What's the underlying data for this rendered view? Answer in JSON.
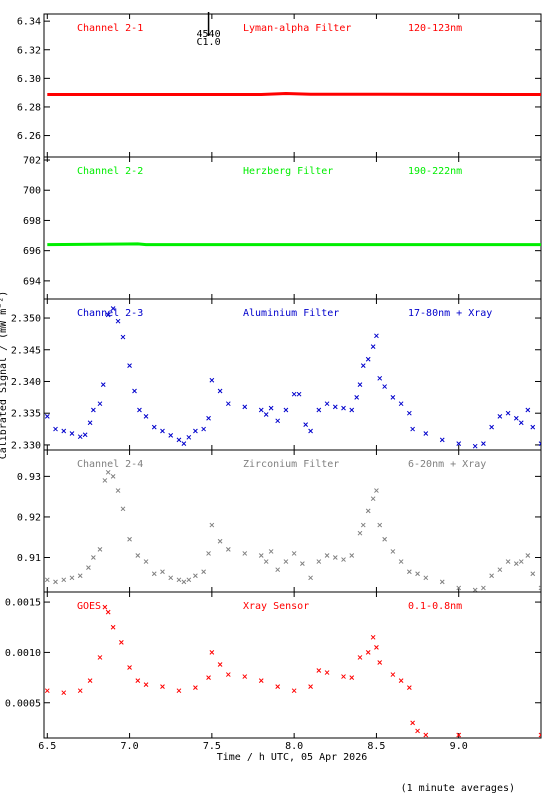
{
  "chart_data": [
    {
      "type": "line",
      "panel_labels": [
        "Channel 2-1",
        "Lyman-alpha Filter",
        "120-123nm"
      ],
      "color": "#ff0000",
      "ylim": [
        6.245,
        6.345
      ],
      "yticks": [
        6.26,
        6.28,
        6.3,
        6.32,
        6.34
      ],
      "ytick_labels": [
        "6.26",
        "6.28",
        "6.30",
        "6.32",
        "6.34"
      ],
      "annotation": {
        "x": 7.48,
        "line1": "4540",
        "line2": "C1.0"
      },
      "series": [
        {
          "points": [
            [
              6.5,
              6.2887
            ],
            [
              7.8,
              6.2887
            ],
            [
              7.95,
              6.2894
            ],
            [
              8.1,
              6.2889
            ],
            [
              9.5,
              6.2887
            ]
          ]
        }
      ]
    },
    {
      "type": "line",
      "panel_labels": [
        "Channel 2-2",
        "Herzberg Filter",
        "190-222nm"
      ],
      "color": "#00ee00",
      "ylim": [
        692.8,
        702.2
      ],
      "yticks": [
        694,
        696,
        698,
        700,
        702
      ],
      "ytick_labels": [
        "694",
        "696",
        "698",
        "700",
        "702"
      ],
      "series": [
        {
          "points": [
            [
              6.5,
              696.4
            ],
            [
              7.05,
              696.45
            ],
            [
              7.1,
              696.4
            ],
            [
              9.5,
              696.4
            ]
          ]
        }
      ]
    },
    {
      "type": "scatter",
      "panel_labels": [
        "Channel 2-3",
        "Aluminium Filter",
        "17-80nm + Xray"
      ],
      "color": "#0000cc",
      "ylim": [
        2.3292,
        2.353
      ],
      "yticks": [
        2.33,
        2.335,
        2.34,
        2.345,
        2.35
      ],
      "ytick_labels": [
        "2.330",
        "2.335",
        "2.340",
        "2.345",
        "2.350"
      ],
      "series": [
        {
          "points": [
            [
              6.5,
              2.3345
            ],
            [
              6.55,
              2.3325
            ],
            [
              6.6,
              2.3322
            ],
            [
              6.65,
              2.3318
            ],
            [
              6.7,
              2.3313
            ],
            [
              6.73,
              2.3316
            ],
            [
              6.76,
              2.3335
            ],
            [
              6.78,
              2.3355
            ],
            [
              6.82,
              2.3365
            ],
            [
              6.84,
              2.3395
            ],
            [
              6.87,
              2.3505
            ],
            [
              6.9,
              2.3515
            ],
            [
              6.93,
              2.3495
            ],
            [
              6.96,
              2.347
            ],
            [
              7.0,
              2.3425
            ],
            [
              7.03,
              2.3385
            ],
            [
              7.06,
              2.3355
            ],
            [
              7.1,
              2.3345
            ],
            [
              7.15,
              2.3328
            ],
            [
              7.2,
              2.3322
            ],
            [
              7.25,
              2.3315
            ],
            [
              7.3,
              2.3308
            ],
            [
              7.33,
              2.3302
            ],
            [
              7.36,
              2.3312
            ],
            [
              7.4,
              2.3322
            ],
            [
              7.45,
              2.3325
            ],
            [
              7.48,
              2.3342
            ],
            [
              7.5,
              2.3402
            ],
            [
              7.55,
              2.3385
            ],
            [
              7.6,
              2.3365
            ],
            [
              7.7,
              2.336
            ],
            [
              7.8,
              2.3355
            ],
            [
              7.83,
              2.3348
            ],
            [
              7.86,
              2.3358
            ],
            [
              7.9,
              2.3338
            ],
            [
              7.95,
              2.3355
            ],
            [
              8.0,
              2.338
            ],
            [
              8.03,
              2.338
            ],
            [
              8.07,
              2.3332
            ],
            [
              8.1,
              2.3322
            ],
            [
              8.15,
              2.3355
            ],
            [
              8.2,
              2.3365
            ],
            [
              8.25,
              2.336
            ],
            [
              8.3,
              2.3358
            ],
            [
              8.35,
              2.3355
            ],
            [
              8.38,
              2.3375
            ],
            [
              8.4,
              2.3395
            ],
            [
              8.42,
              2.3425
            ],
            [
              8.45,
              2.3435
            ],
            [
              8.48,
              2.3455
            ],
            [
              8.5,
              2.3472
            ],
            [
              8.52,
              2.3405
            ],
            [
              8.55,
              2.3392
            ],
            [
              8.6,
              2.3375
            ],
            [
              8.65,
              2.3365
            ],
            [
              8.7,
              2.335
            ],
            [
              8.72,
              2.3325
            ],
            [
              8.8,
              2.3318
            ],
            [
              8.9,
              2.3308
            ],
            [
              9.0,
              2.3302
            ],
            [
              9.1,
              2.3298
            ],
            [
              9.15,
              2.3302
            ],
            [
              9.2,
              2.3328
            ],
            [
              9.25,
              2.3345
            ],
            [
              9.3,
              2.335
            ],
            [
              9.35,
              2.3342
            ],
            [
              9.38,
              2.3335
            ],
            [
              9.42,
              2.3355
            ],
            [
              9.45,
              2.3328
            ],
            [
              9.5,
              2.3302
            ]
          ]
        }
      ]
    },
    {
      "type": "scatter",
      "panel_labels": [
        "Channel 2-4",
        "Zirconium Filter",
        "6-20nm + Xray"
      ],
      "color": "#808080",
      "ylim": [
        0.9015,
        0.9365
      ],
      "yticks": [
        0.91,
        0.92,
        0.93
      ],
      "ytick_labels": [
        "0.91",
        "0.92",
        "0.93"
      ],
      "series": [
        {
          "points": [
            [
              6.5,
              0.9045
            ],
            [
              6.55,
              0.904
            ],
            [
              6.6,
              0.9045
            ],
            [
              6.65,
              0.905
            ],
            [
              6.7,
              0.9055
            ],
            [
              6.75,
              0.9075
            ],
            [
              6.78,
              0.91
            ],
            [
              6.82,
              0.912
            ],
            [
              6.85,
              0.929
            ],
            [
              6.87,
              0.931
            ],
            [
              6.9,
              0.93
            ],
            [
              6.93,
              0.9265
            ],
            [
              6.96,
              0.922
            ],
            [
              7.0,
              0.9145
            ],
            [
              7.05,
              0.9105
            ],
            [
              7.1,
              0.909
            ],
            [
              7.15,
              0.906
            ],
            [
              7.2,
              0.9065
            ],
            [
              7.25,
              0.905
            ],
            [
              7.3,
              0.9045
            ],
            [
              7.33,
              0.904
            ],
            [
              7.36,
              0.9045
            ],
            [
              7.4,
              0.9055
            ],
            [
              7.45,
              0.9065
            ],
            [
              7.48,
              0.911
            ],
            [
              7.5,
              0.918
            ],
            [
              7.55,
              0.914
            ],
            [
              7.6,
              0.912
            ],
            [
              7.7,
              0.911
            ],
            [
              7.8,
              0.9105
            ],
            [
              7.83,
              0.909
            ],
            [
              7.86,
              0.9115
            ],
            [
              7.9,
              0.907
            ],
            [
              7.95,
              0.909
            ],
            [
              8.0,
              0.911
            ],
            [
              8.05,
              0.9085
            ],
            [
              8.1,
              0.905
            ],
            [
              8.15,
              0.909
            ],
            [
              8.2,
              0.9105
            ],
            [
              8.25,
              0.91
            ],
            [
              8.3,
              0.9095
            ],
            [
              8.35,
              0.9105
            ],
            [
              8.4,
              0.916
            ],
            [
              8.42,
              0.918
            ],
            [
              8.45,
              0.9215
            ],
            [
              8.48,
              0.9245
            ],
            [
              8.5,
              0.9265
            ],
            [
              8.52,
              0.918
            ],
            [
              8.55,
              0.9145
            ],
            [
              8.6,
              0.9115
            ],
            [
              8.65,
              0.909
            ],
            [
              8.7,
              0.9065
            ],
            [
              8.75,
              0.906
            ],
            [
              8.8,
              0.905
            ],
            [
              8.9,
              0.904
            ],
            [
              9.0,
              0.9025
            ],
            [
              9.1,
              0.902
            ],
            [
              9.15,
              0.9025
            ],
            [
              9.2,
              0.9055
            ],
            [
              9.25,
              0.907
            ],
            [
              9.3,
              0.909
            ],
            [
              9.35,
              0.9085
            ],
            [
              9.38,
              0.909
            ],
            [
              9.42,
              0.9105
            ],
            [
              9.45,
              0.906
            ],
            [
              9.5,
              0.9025
            ]
          ]
        }
      ]
    },
    {
      "type": "scatter",
      "panel_labels": [
        "GOES",
        "Xray Sensor",
        "0.1-0.8nm"
      ],
      "color": "#ff0000",
      "ylim": [
        0.00015,
        0.0016
      ],
      "yticks": [
        0.0005,
        0.001,
        0.0015
      ],
      "ytick_labels": [
        "0.0005",
        "0.0010",
        "0.0015"
      ],
      "series": [
        {
          "points": [
            [
              6.5,
              0.00062
            ],
            [
              6.6,
              0.0006
            ],
            [
              6.7,
              0.00062
            ],
            [
              6.76,
              0.00072
            ],
            [
              6.82,
              0.00095
            ],
            [
              6.85,
              0.00145
            ],
            [
              6.87,
              0.0014
            ],
            [
              6.9,
              0.00125
            ],
            [
              6.95,
              0.0011
            ],
            [
              7.0,
              0.00085
            ],
            [
              7.05,
              0.00072
            ],
            [
              7.1,
              0.00068
            ],
            [
              7.2,
              0.00066
            ],
            [
              7.3,
              0.00062
            ],
            [
              7.4,
              0.00065
            ],
            [
              7.48,
              0.00075
            ],
            [
              7.5,
              0.001
            ],
            [
              7.55,
              0.00088
            ],
            [
              7.6,
              0.00078
            ],
            [
              7.7,
              0.00076
            ],
            [
              7.8,
              0.00072
            ],
            [
              7.9,
              0.00066
            ],
            [
              8.0,
              0.00062
            ],
            [
              8.1,
              0.00066
            ],
            [
              8.15,
              0.00082
            ],
            [
              8.2,
              0.0008
            ],
            [
              8.3,
              0.00076
            ],
            [
              8.35,
              0.00075
            ],
            [
              8.4,
              0.00095
            ],
            [
              8.45,
              0.001
            ],
            [
              8.48,
              0.00115
            ],
            [
              8.5,
              0.00105
            ],
            [
              8.52,
              0.0009
            ],
            [
              8.6,
              0.00078
            ],
            [
              8.65,
              0.00072
            ],
            [
              8.7,
              0.00065
            ],
            [
              8.72,
              0.0003
            ],
            [
              8.75,
              0.00022
            ],
            [
              8.8,
              0.00018
            ],
            [
              9.0,
              0.00018
            ],
            [
              9.5,
              0.00018
            ]
          ]
        }
      ]
    }
  ],
  "axes": {
    "xlim": [
      6.48,
      9.5
    ],
    "xticks": [
      6.5,
      7.0,
      7.5,
      8.0,
      8.5,
      9.0
    ],
    "xtick_labels": [
      "6.5",
      "7.0",
      "7.5",
      "8.0",
      "8.5",
      "9.0"
    ],
    "xlabel": "Time / h UTC, 05 Apr 2026",
    "ylabel": "Calibrated Signal / (mW m⁻²)"
  },
  "footnote": "(1 minute averages)"
}
